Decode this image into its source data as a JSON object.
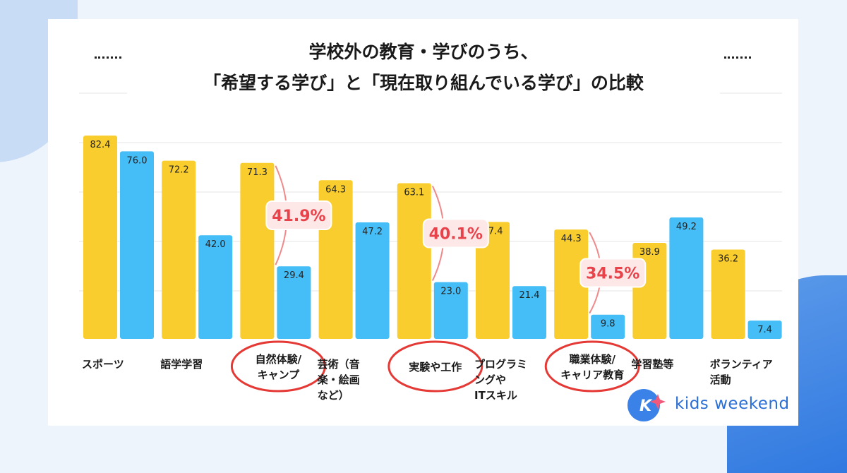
{
  "title": {
    "line1": "学校外の教育・学びのうち、",
    "line2": "「希望する学び」と「現在取り組んでいる学び」の比較"
  },
  "brand": {
    "name": "kids weekend",
    "logo_letter": "K"
  },
  "colors": {
    "hope": "#f9cd2d",
    "current": "#45bdf6",
    "diff_text": "#e8424a",
    "diff_bg": "#fde7e7",
    "circle": "#e53935",
    "bracket": "#f08a8a"
  },
  "chart_data": {
    "type": "bar",
    "title": "学校外の教育・学びのうち、「希望する学び」と「現在取り組んでいる学び」の比較",
    "categories": [
      "スポーツ",
      "語学学習",
      "自然体験/キャンプ",
      "芸術（音楽・絵画など）",
      "実験や工作",
      "プログラミングやITスキル",
      "職業体験/キャリア教育",
      "学習塾等",
      "ボランティア活動"
    ],
    "category_lines": [
      [
        "スポーツ"
      ],
      [
        "語学学習"
      ],
      [
        "自然体験/",
        "キャンプ"
      ],
      [
        "芸術（音",
        "楽・絵画",
        "など）"
      ],
      [
        "実験や工作"
      ],
      [
        "プログラミ",
        "ングや",
        "ITスキル"
      ],
      [
        "職業体験/",
        "キャリア教育"
      ],
      [
        "学習塾等"
      ],
      [
        "ボランティア",
        "活動"
      ]
    ],
    "series": [
      {
        "values": [
          82.4,
          72.2,
          71.3,
          64.3,
          63.1,
          47.4,
          44.3,
          38.9,
          36.2
        ]
      },
      {
        "values": [
          76.0,
          42.0,
          29.4,
          47.2,
          23.0,
          21.4,
          9.8,
          49.2,
          7.4
        ]
      }
    ],
    "value_labels": [
      [
        "82.4",
        "72.2",
        "71.3",
        "64.3",
        "63.1",
        "47.4",
        "44.3",
        "38.9",
        "36.2"
      ],
      [
        "76.0",
        "42.0",
        "29.4",
        "47.2",
        "23.0",
        "21.4",
        "9.8",
        "49.2",
        "7.4"
      ]
    ],
    "annotations": [
      {
        "category_index": 2,
        "label": "41.9%"
      },
      {
        "category_index": 4,
        "label": "40.1%"
      },
      {
        "category_index": 6,
        "label": "34.5%"
      }
    ],
    "highlighted_categories": [
      2,
      4,
      6
    ],
    "ylim": [
      0,
      85
    ],
    "grid": true
  }
}
